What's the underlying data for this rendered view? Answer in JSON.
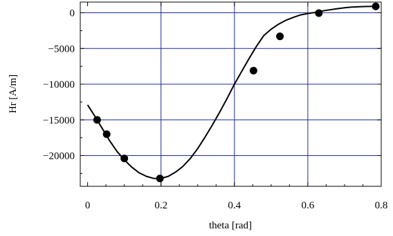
{
  "chart_data": {
    "type": "scatter",
    "title": "",
    "xlabel": "theta [rad]",
    "ylabel": "Hr [A/m]",
    "xlim": [
      -0.02,
      0.8
    ],
    "ylim": [
      -24300,
      1500
    ],
    "xticks": [
      0,
      0.2,
      0.4,
      0.6,
      0.8
    ],
    "xtick_labels": [
      "0",
      "0.2",
      "0.4",
      "0.6",
      "0.8"
    ],
    "yticks": [
      0,
      -5000,
      -10000,
      -15000,
      -20000
    ],
    "ytick_labels": [
      "0",
      "−5000",
      "−10000",
      "−15000",
      "−20000"
    ],
    "grid": true,
    "grid_color": "#1a2a9c",
    "series": [
      {
        "kind": "points",
        "color": "#000000",
        "x": [
          0.026,
          0.052,
          0.1,
          0.197,
          0.452,
          0.524,
          0.63,
          0.785
        ],
        "y": [
          -15000,
          -17000,
          -20400,
          -23200,
          -8100,
          -3300,
          -50,
          900
        ]
      },
      {
        "kind": "curve",
        "color": "#000000",
        "x": [
          0.0,
          0.02,
          0.04,
          0.06,
          0.08,
          0.1,
          0.12,
          0.14,
          0.16,
          0.18,
          0.2,
          0.22,
          0.24,
          0.26,
          0.28,
          0.3,
          0.32,
          0.34,
          0.36,
          0.38,
          0.4,
          0.42,
          0.44,
          0.46,
          0.48,
          0.5,
          0.52,
          0.54,
          0.56,
          0.58,
          0.6,
          0.62,
          0.64,
          0.66,
          0.68,
          0.7,
          0.72,
          0.74,
          0.76,
          0.785
        ],
        "y": [
          -12900,
          -14500,
          -16200,
          -17900,
          -19400,
          -20600,
          -21600,
          -22400,
          -22900,
          -23200,
          -23200,
          -22900,
          -22300,
          -21500,
          -20400,
          -19000,
          -17400,
          -15700,
          -13900,
          -12000,
          -10000,
          -8200,
          -6400,
          -4700,
          -3200,
          -2300,
          -1600,
          -1050,
          -650,
          -300,
          -100,
          50,
          250,
          420,
          570,
          700,
          790,
          850,
          880,
          900
        ]
      }
    ]
  }
}
